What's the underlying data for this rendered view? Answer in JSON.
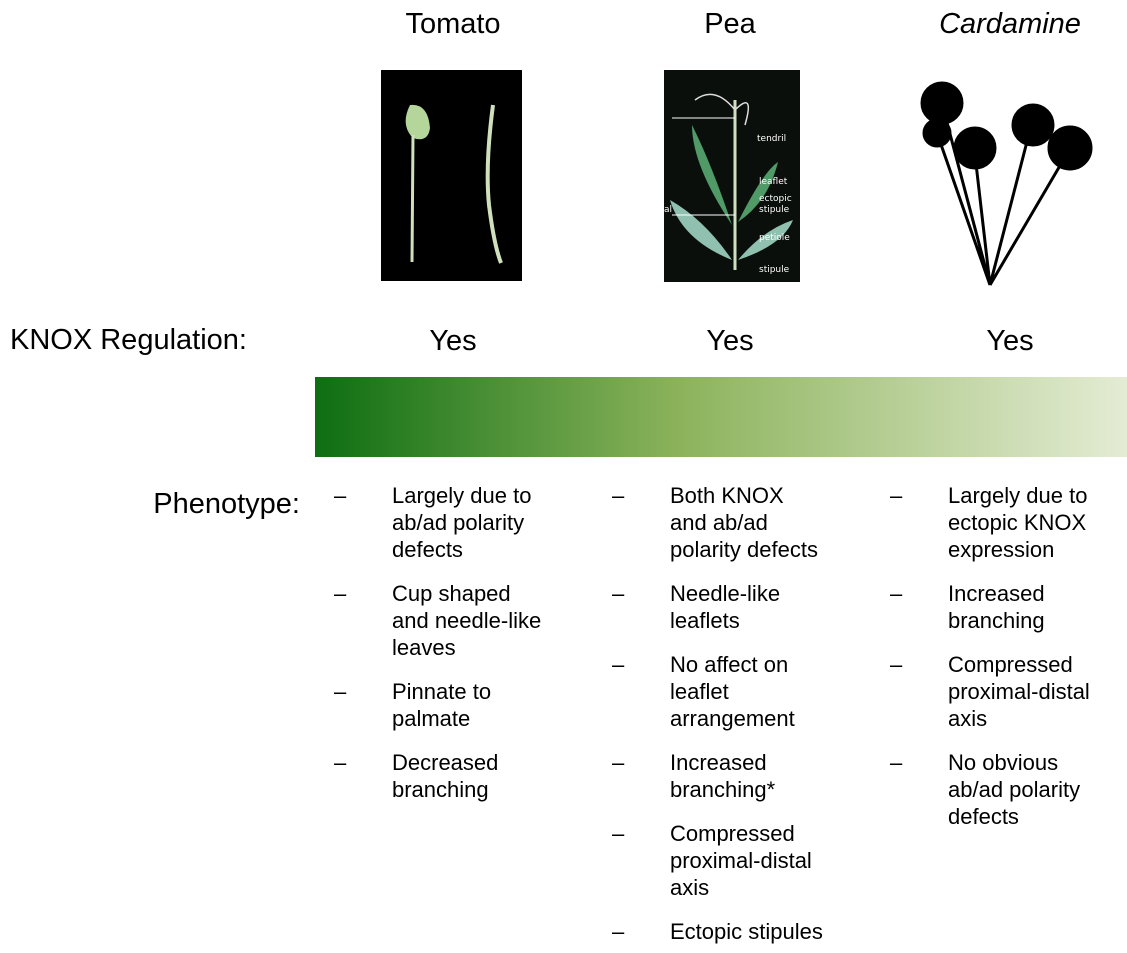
{
  "columns": [
    {
      "name": "Tomato",
      "knox": "Yes",
      "phenotype": [
        [
          "Largely due to",
          "ab/ad polarity",
          "defects"
        ],
        [
          "Cup shaped",
          "and needle-like",
          "leaves"
        ],
        [
          "Pinnate to",
          "palmate"
        ],
        [
          "Decreased",
          "branching"
        ]
      ]
    },
    {
      "name": "Pea",
      "knox": "Yes",
      "phenotype": [
        [
          "Both KNOX",
          "and ab/ad",
          "polarity defects"
        ],
        [
          "Needle-like",
          "leaflets"
        ],
        [
          "No affect on",
          "leaflet",
          "arrangement"
        ],
        [
          "Increased",
          "branching*"
        ],
        [
          "Compressed",
          "proximal-distal",
          "axis"
        ],
        [
          "Ectopic stipules"
        ]
      ]
    },
    {
      "name": "Cardamine",
      "knox": "Yes",
      "phenotype": [
        [
          "Largely due to",
          "ectopic KNOX",
          "expression"
        ],
        [
          "Increased",
          "branching"
        ],
        [
          "Compressed",
          "proximal-distal",
          "axis"
        ],
        [
          "No obvious",
          "ab/ad polarity",
          "defects"
        ]
      ]
    }
  ],
  "knox_label": "KNOX Regulation:",
  "phenotype_label": "Phenotype:",
  "bullet": "–",
  "pea_image_labels": [
    "tendril",
    "leaflet",
    "ectopic",
    "stipule",
    "petiole",
    "stipule",
    "al"
  ]
}
